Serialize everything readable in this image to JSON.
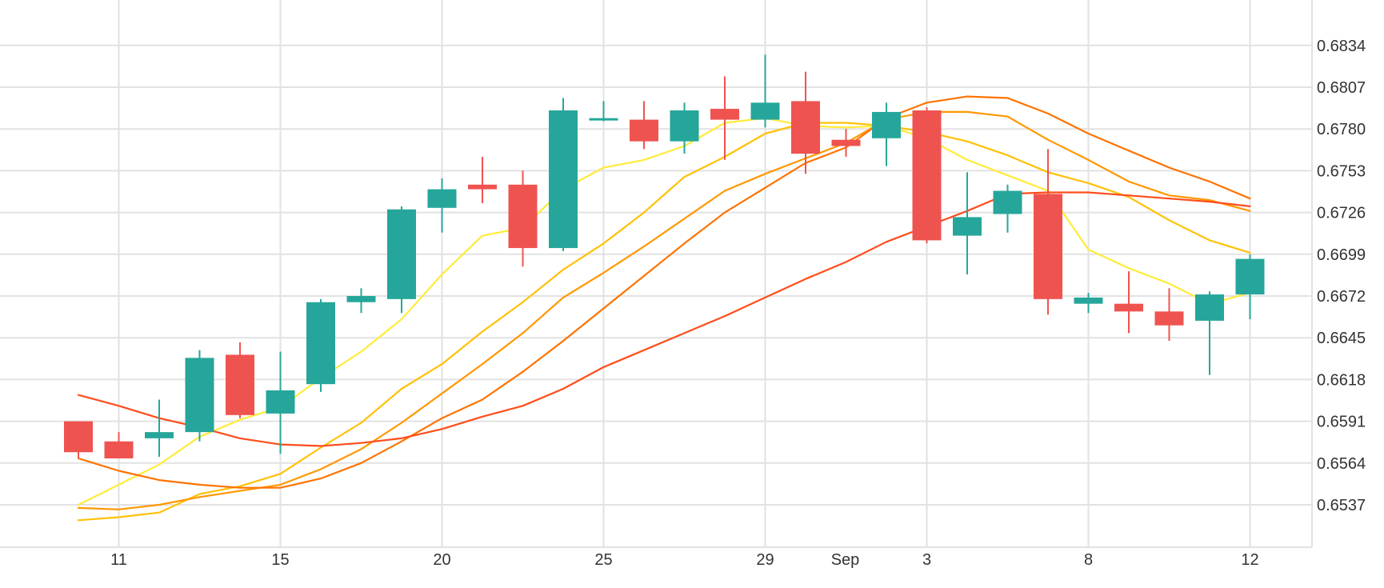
{
  "chart_data": {
    "type": "candlestick",
    "title": "",
    "xlabel": "",
    "ylabel": "",
    "ylim": [
      0.651,
      0.686
    ],
    "y_ticks": [
      0.6537,
      0.6564,
      0.6591,
      0.6618,
      0.6645,
      0.6672,
      0.6699,
      0.6726,
      0.6753,
      0.678,
      0.6807,
      0.6834
    ],
    "y_tick_labels": [
      "0.6537",
      "0.6564",
      "0.6591",
      "0.6618",
      "0.6645",
      "0.6672",
      "0.6699",
      "0.6726",
      "0.6753",
      "0.6780",
      "0.6807",
      "0.6834"
    ],
    "x_tick_labels": [
      {
        "text": "11",
        "slot": 1
      },
      {
        "text": "15",
        "slot": 5
      },
      {
        "text": "20",
        "slot": 9
      },
      {
        "text": "25",
        "slot": 13
      },
      {
        "text": "29",
        "slot": 17
      },
      {
        "text": "Sep",
        "slot": 18.98
      },
      {
        "text": "3",
        "slot": 21
      },
      {
        "text": "8",
        "slot": 25
      },
      {
        "text": "12",
        "slot": 29
      }
    ],
    "x_grid_slots": [
      1,
      5,
      9,
      13,
      17,
      21,
      25,
      29
    ],
    "y_axis_position": "right",
    "grid": true,
    "colors": {
      "up": "#26a69a",
      "down": "#ef5350",
      "grid": "#e2e2e2",
      "axis_text": "#333333"
    },
    "candles": [
      {
        "o": 0.6591,
        "h": 0.6591,
        "l": 0.6567,
        "c": 0.6571
      },
      {
        "o": 0.6578,
        "h": 0.6584,
        "l": 0.6567,
        "c": 0.6567
      },
      {
        "o": 0.658,
        "h": 0.6605,
        "l": 0.6568,
        "c": 0.6584
      },
      {
        "o": 0.6584,
        "h": 0.6637,
        "l": 0.6578,
        "c": 0.6632
      },
      {
        "o": 0.6634,
        "h": 0.6642,
        "l": 0.6593,
        "c": 0.6595
      },
      {
        "o": 0.6596,
        "h": 0.6636,
        "l": 0.657,
        "c": 0.6611
      },
      {
        "o": 0.6615,
        "h": 0.667,
        "l": 0.661,
        "c": 0.6668
      },
      {
        "o": 0.6668,
        "h": 0.6677,
        "l": 0.6661,
        "c": 0.6672
      },
      {
        "o": 0.667,
        "h": 0.673,
        "l": 0.6661,
        "c": 0.6728
      },
      {
        "o": 0.6729,
        "h": 0.6748,
        "l": 0.6713,
        "c": 0.6741
      },
      {
        "o": 0.6744,
        "h": 0.6762,
        "l": 0.6732,
        "c": 0.6741
      },
      {
        "o": 0.6744,
        "h": 0.6753,
        "l": 0.6691,
        "c": 0.6703
      },
      {
        "o": 0.6703,
        "h": 0.68,
        "l": 0.6701,
        "c": 0.6792
      },
      {
        "o": 0.6787,
        "h": 0.6798,
        "l": 0.6785,
        "c": 0.6787
      },
      {
        "o": 0.6786,
        "h": 0.6798,
        "l": 0.6767,
        "c": 0.6772
      },
      {
        "o": 0.6772,
        "h": 0.6797,
        "l": 0.6764,
        "c": 0.6792
      },
      {
        "o": 0.6793,
        "h": 0.6814,
        "l": 0.676,
        "c": 0.6786
      },
      {
        "o": 0.6786,
        "h": 0.6828,
        "l": 0.6781,
        "c": 0.6797
      },
      {
        "o": 0.6798,
        "h": 0.6817,
        "l": 0.6751,
        "c": 0.6764
      },
      {
        "o": 0.6773,
        "h": 0.678,
        "l": 0.6762,
        "c": 0.6769
      },
      {
        "o": 0.6774,
        "h": 0.6797,
        "l": 0.6756,
        "c": 0.6791
      },
      {
        "o": 0.6792,
        "h": 0.6794,
        "l": 0.6706,
        "c": 0.6708
      },
      {
        "o": 0.6711,
        "h": 0.6752,
        "l": 0.6686,
        "c": 0.6723
      },
      {
        "o": 0.6725,
        "h": 0.6744,
        "l": 0.6713,
        "c": 0.674
      },
      {
        "o": 0.6738,
        "h": 0.6767,
        "l": 0.666,
        "c": 0.667
      },
      {
        "o": 0.6667,
        "h": 0.6674,
        "l": 0.6661,
        "c": 0.6671
      },
      {
        "o": 0.6667,
        "h": 0.6688,
        "l": 0.6648,
        "c": 0.6662
      },
      {
        "o": 0.6662,
        "h": 0.6677,
        "l": 0.6643,
        "c": 0.6653
      },
      {
        "o": 0.6656,
        "h": 0.6675,
        "l": 0.6621,
        "c": 0.6673
      },
      {
        "o": 0.6673,
        "h": 0.6699,
        "l": 0.6657,
        "c": 0.6696
      }
    ],
    "series": [
      {
        "color": "#ffeb3b",
        "from_slot": 0,
        "values": [
          0.6537,
          0.655,
          0.6563,
          0.6581,
          0.6592,
          0.66,
          0.6619,
          0.6636,
          0.6657,
          0.6686,
          0.6711,
          0.6716,
          0.6741,
          0.6755,
          0.676,
          0.6769,
          0.6784,
          0.6787,
          0.6782,
          0.6781,
          0.6782,
          0.6774,
          0.676,
          0.675,
          0.674,
          0.6702,
          0.669,
          0.668,
          0.6667,
          0.6674
        ]
      },
      {
        "color": "#ffc107",
        "from_slot": 0,
        "values": [
          0.6527,
          0.6529,
          0.6532,
          0.6544,
          0.6549,
          0.6557,
          0.6574,
          0.659,
          0.6612,
          0.6628,
          0.6649,
          0.6668,
          0.6689,
          0.6706,
          0.6726,
          0.6749,
          0.6762,
          0.6777,
          0.6784,
          0.6784,
          0.6782,
          0.6778,
          0.6772,
          0.6763,
          0.6752,
          0.6745,
          0.6736,
          0.6721,
          0.6708,
          0.67
        ]
      },
      {
        "color": "#ff9800",
        "from_slot": 0,
        "values": [
          0.6535,
          0.6534,
          0.6537,
          0.6542,
          0.6546,
          0.655,
          0.656,
          0.6573,
          0.659,
          0.6609,
          0.6628,
          0.6648,
          0.6671,
          0.6687,
          0.6704,
          0.6722,
          0.674,
          0.6751,
          0.6761,
          0.6771,
          0.6786,
          0.6791,
          0.6791,
          0.6788,
          0.6773,
          0.676,
          0.6746,
          0.6737,
          0.6734,
          0.6727
        ]
      },
      {
        "color": "#ff7300",
        "from_slot": 0,
        "values": [
          0.6567,
          0.6559,
          0.6553,
          0.655,
          0.6548,
          0.6548,
          0.6554,
          0.6564,
          0.6578,
          0.6593,
          0.6605,
          0.6623,
          0.6643,
          0.6664,
          0.6685,
          0.6706,
          0.6726,
          0.6742,
          0.6758,
          0.6768,
          0.6787,
          0.6797,
          0.6801,
          0.68,
          0.679,
          0.6777,
          0.6766,
          0.6755,
          0.6746,
          0.6735
        ]
      },
      {
        "color": "#ff4d1a",
        "from_slot": 0,
        "values": [
          0.6608,
          0.6601,
          0.6593,
          0.6587,
          0.658,
          0.6576,
          0.6575,
          0.6577,
          0.658,
          0.6586,
          0.6594,
          0.6601,
          0.6612,
          0.6626,
          0.6637,
          0.6648,
          0.6659,
          0.6671,
          0.6683,
          0.6694,
          0.6707,
          0.6717,
          0.6727,
          0.6738,
          0.6739,
          0.6739,
          0.6737,
          0.6735,
          0.6733,
          0.673
        ]
      }
    ]
  }
}
